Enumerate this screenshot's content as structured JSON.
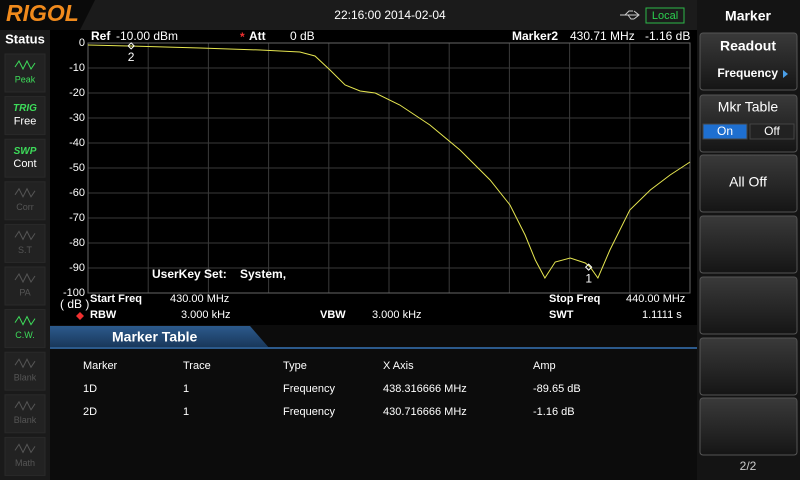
{
  "header": {
    "logo": "RIGOL",
    "datetime": "22:16:00 2014-02-04",
    "mode": "Local"
  },
  "status": {
    "title": "Status",
    "items": [
      {
        "label": "Peak",
        "active": true
      },
      {
        "title": "TRIG",
        "label": "Free",
        "active": true
      },
      {
        "title": "SWP",
        "label": "Cont",
        "active": true
      },
      {
        "label": "Corr",
        "active": false
      },
      {
        "label": "S.T",
        "active": false
      },
      {
        "label": "PA",
        "active": false
      },
      {
        "label": "C.W.",
        "active": true
      },
      {
        "label": "Blank",
        "active": false
      },
      {
        "label": "Blank",
        "active": false
      },
      {
        "label": "Math",
        "active": false
      }
    ]
  },
  "menu": {
    "title": "Marker",
    "buttons": [
      {
        "label": "Readout",
        "value": "Frequency"
      },
      {
        "label": "Mkr Table",
        "options": [
          "On",
          "Off"
        ],
        "selected": "On"
      },
      {
        "label": "All Off"
      }
    ],
    "page": "2/2"
  },
  "plot": {
    "ref": "Ref",
    "ref_value": "-10.00 dBm",
    "att_flag": "*",
    "att": "Att",
    "att_value": "0 dB",
    "marker_readout": "Marker2",
    "marker_freq": "430.71 MHz",
    "marker_amp": "-1.16 dB",
    "unit": "( dB )",
    "userkey": "UserKey Set:",
    "userkey_value": "System,",
    "xlim": [
      430,
      440
    ],
    "ylim": [
      -100,
      0
    ],
    "xticks": [
      430,
      431,
      432,
      433,
      434,
      435,
      436,
      437,
      438,
      439,
      440
    ],
    "yticks": [
      0,
      -10,
      -20,
      -30,
      -40,
      -50,
      -60,
      -70,
      -80,
      -90,
      -100
    ],
    "trace": {
      "color": "#e6e650",
      "x": [
        430.0,
        430.7,
        431.86,
        432.86,
        433.52,
        433.77,
        434.02,
        434.27,
        434.52,
        434.77,
        435.18,
        435.68,
        436.18,
        436.68,
        437.01,
        437.26,
        437.43,
        437.59,
        437.76,
        438.01,
        438.26,
        438.34,
        438.47,
        438.67,
        439.0,
        439.34,
        439.67,
        440.0
      ],
      "values": [
        -0.8,
        -1.2,
        -2,
        -2.8,
        -3.6,
        -5.2,
        -10.8,
        -16.8,
        -19.2,
        -20,
        -24.8,
        -32.8,
        -42.8,
        -54.8,
        -64.8,
        -76.8,
        -86.8,
        -94,
        -87.6,
        -86,
        -88,
        -89.6,
        -94,
        -82.8,
        -66.8,
        -58.8,
        -52.8,
        -47.6
      ]
    },
    "markers": [
      {
        "label": "1",
        "x": 438.316666,
        "y": -89.65
      },
      {
        "label": "2",
        "x": 430.716666,
        "y": -1.16
      }
    ]
  },
  "footer": {
    "start_label": "Start Freq",
    "start": "430.00 MHz",
    "stop_label": "Stop Freq",
    "stop": "440.00 MHz",
    "rbw_label": "RBW",
    "rbw": "3.000 kHz",
    "vbw_label": "VBW",
    "vbw": "3.000 kHz",
    "swt_label": "SWT",
    "swt": "1.1111 s"
  },
  "marker_table": {
    "title": "Marker Table",
    "columns": [
      "Marker",
      "Trace",
      "Type",
      "X Axis",
      "Amp"
    ],
    "rows": [
      [
        "1D",
        "1",
        "Frequency",
        "438.316666 MHz",
        "-89.65 dB"
      ],
      [
        "2D",
        "1",
        "Frequency",
        "430.716666 MHz",
        "-1.16 dB"
      ]
    ]
  }
}
